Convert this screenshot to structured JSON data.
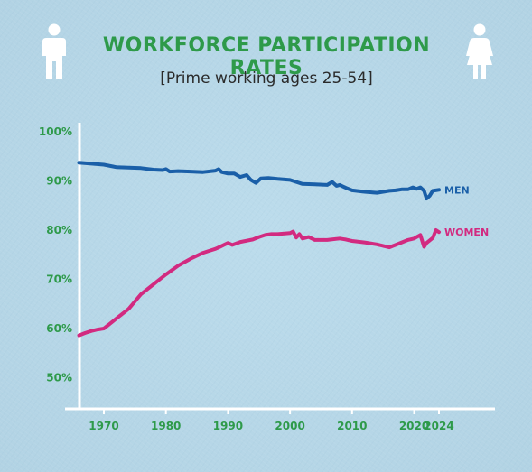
{
  "header": {
    "title": "WORKFORCE PARTICIPATION RATES",
    "subtitle": "[Prime working ages 25-54]"
  },
  "icons": {
    "left": "man-icon",
    "right": "woman-icon"
  },
  "colors": {
    "background": "#b8d8e8",
    "title": "#2e9a4a",
    "axis_labels": "#2e9a4a",
    "axis_lines": "#ffffff",
    "men": "#1a5fa8",
    "women": "#d22a80"
  },
  "chart_data": {
    "type": "line",
    "title": "WORKFORCE PARTICIPATION RATES",
    "subtitle": "[Prime working ages 25-54]",
    "xlabel": "",
    "ylabel": "",
    "xlim": [
      1965.8,
      2024
    ],
    "ylim": [
      48,
      100
    ],
    "x_ticks": [
      1970,
      1980,
      1990,
      2000,
      2010,
      2020,
      2024
    ],
    "y_ticks": [
      {
        "value": 50,
        "label": "50%"
      },
      {
        "value": 60,
        "label": "60%"
      },
      {
        "value": 70,
        "label": "70%"
      },
      {
        "value": 80,
        "label": "80%"
      },
      {
        "value": 90,
        "label": "90%"
      },
      {
        "value": 100,
        "label": "100%"
      }
    ],
    "grid": false,
    "series": [
      {
        "name": "MEN",
        "color": "#1a5fa8",
        "x": [
          1966,
          1968,
          1970,
          1972,
          1974,
          1976,
          1978,
          1979.5,
          1980,
          1980.6,
          1982,
          1984,
          1986,
          1988,
          1988.5,
          1989,
          1990,
          1991,
          1992,
          1993,
          1993.7,
          1994.5,
          1995.3,
          1996.5,
          1998,
          2000,
          2001,
          2002,
          2004,
          2006,
          2006.8,
          2007.5,
          2008,
          2009,
          2010,
          2012,
          2014,
          2016,
          2017,
          2018,
          2019,
          2019.8,
          2020.4,
          2021,
          2021.6,
          2022,
          2022.5,
          2023,
          2024
        ],
        "y": [
          93.7,
          93.5,
          93.3,
          92.8,
          92.7,
          92.6,
          92.3,
          92.2,
          92.4,
          91.9,
          92.0,
          91.9,
          91.8,
          92.1,
          92.4,
          91.8,
          91.5,
          91.5,
          90.8,
          91.2,
          90.2,
          89.6,
          90.5,
          90.6,
          90.4,
          90.2,
          89.8,
          89.4,
          89.3,
          89.2,
          89.8,
          89.0,
          89.2,
          88.6,
          88.1,
          87.8,
          87.6,
          88.0,
          88.1,
          88.3,
          88.3,
          88.7,
          88.4,
          88.7,
          88.0,
          86.4,
          87.0,
          88.0,
          88.2
        ]
      },
      {
        "name": "WOMEN",
        "color": "#d22a80",
        "x": [
          1966,
          1967,
          1968,
          1969,
          1970,
          1971,
          1972,
          1974,
          1976,
          1977,
          1978,
          1979,
          1980,
          1982,
          1984,
          1986,
          1987,
          1988,
          1988.7,
          1990,
          1990.7,
          1992,
          1994,
          1995,
          1996,
          1997,
          1998,
          2000,
          2000.5,
          2001,
          2001.5,
          2002,
          2003,
          2004,
          2006,
          2008,
          2009,
          2010,
          2012,
          2014,
          2016,
          2017,
          2018,
          2019,
          2020,
          2021,
          2021.6,
          2022,
          2023,
          2023.5,
          2024
        ],
        "y": [
          58.6,
          59.1,
          59.5,
          59.8,
          60.0,
          61.0,
          62.0,
          64.0,
          67.0,
          68.0,
          69.0,
          70.0,
          71.0,
          72.8,
          74.2,
          75.4,
          75.8,
          76.2,
          76.6,
          77.4,
          77.0,
          77.6,
          78.1,
          78.6,
          79.0,
          79.2,
          79.2,
          79.4,
          79.7,
          78.5,
          79.2,
          78.3,
          78.6,
          78.0,
          78.0,
          78.3,
          78.1,
          77.8,
          77.5,
          77.1,
          76.5,
          77.0,
          77.5,
          78.0,
          78.3,
          79.0,
          76.6,
          77.4,
          78.4,
          80.0,
          79.6
        ]
      }
    ]
  }
}
